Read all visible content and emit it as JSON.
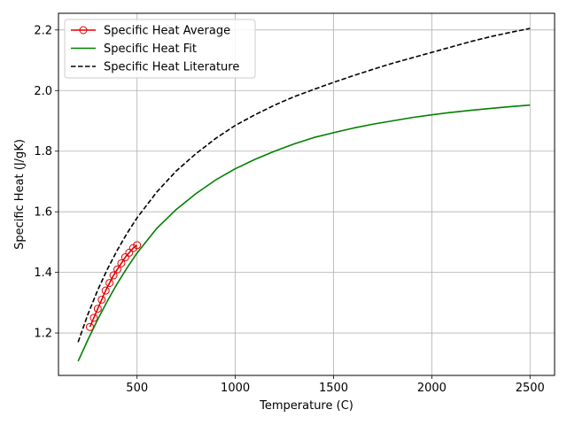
{
  "chart_data": {
    "type": "line",
    "title": "",
    "xlabel": "Temperature (C)",
    "ylabel": "Specific Heat (J/gK)",
    "xlim": [
      100,
      2625
    ],
    "ylim": [
      1.06,
      2.255
    ],
    "xticks": [
      500,
      1000,
      1500,
      2000,
      2500
    ],
    "xtick_labels": [
      "500",
      "1000",
      "1500",
      "2000",
      "2500"
    ],
    "yticks": [
      1.2,
      1.4,
      1.6,
      1.8,
      2.0,
      2.2
    ],
    "ytick_labels": [
      "1.2",
      "1.4",
      "1.6",
      "1.8",
      "2.0",
      "2.2"
    ],
    "grid": true,
    "legend_position": "upper-left",
    "series": [
      {
        "name": "Specific Heat Average",
        "style": "line-markers",
        "color": "#e00000",
        "x": [
          260,
          280,
          300,
          320,
          340,
          360,
          380,
          400,
          420,
          440,
          460,
          480,
          500
        ],
        "y": [
          1.22,
          1.25,
          1.28,
          1.31,
          1.34,
          1.365,
          1.39,
          1.41,
          1.43,
          1.45,
          1.465,
          1.48,
          1.49
        ]
      },
      {
        "name": "Specific Heat Fit",
        "style": "solid",
        "color": "#008000",
        "x": [
          200,
          250,
          300,
          350,
          400,
          450,
          500,
          600,
          700,
          800,
          900,
          1000,
          1100,
          1200,
          1300,
          1400,
          1500,
          1600,
          1700,
          1800,
          1900,
          2000,
          2100,
          2200,
          2300,
          2400,
          2500
        ],
        "y": [
          1.107,
          1.178,
          1.245,
          1.307,
          1.364,
          1.416,
          1.464,
          1.545,
          1.608,
          1.66,
          1.705,
          1.742,
          1.773,
          1.8,
          1.824,
          1.845,
          1.861,
          1.876,
          1.889,
          1.9,
          1.911,
          1.92,
          1.928,
          1.935,
          1.941,
          1.947,
          1.952
        ]
      },
      {
        "name": "Specific Heat Literature",
        "style": "dashed",
        "color": "#000000",
        "x": [
          200,
          250,
          300,
          350,
          400,
          450,
          500,
          600,
          700,
          800,
          900,
          1000,
          1100,
          1200,
          1300,
          1400,
          1500,
          1600,
          1700,
          1800,
          1900,
          2000,
          2100,
          2200,
          2300,
          2400,
          2500
        ],
        "y": [
          1.17,
          1.262,
          1.342,
          1.412,
          1.474,
          1.53,
          1.58,
          1.665,
          1.735,
          1.792,
          1.842,
          1.885,
          1.92,
          1.952,
          1.98,
          2.004,
          2.027,
          2.049,
          2.07,
          2.09,
          2.108,
          2.126,
          2.144,
          2.162,
          2.178,
          2.192,
          2.205
        ]
      }
    ]
  }
}
